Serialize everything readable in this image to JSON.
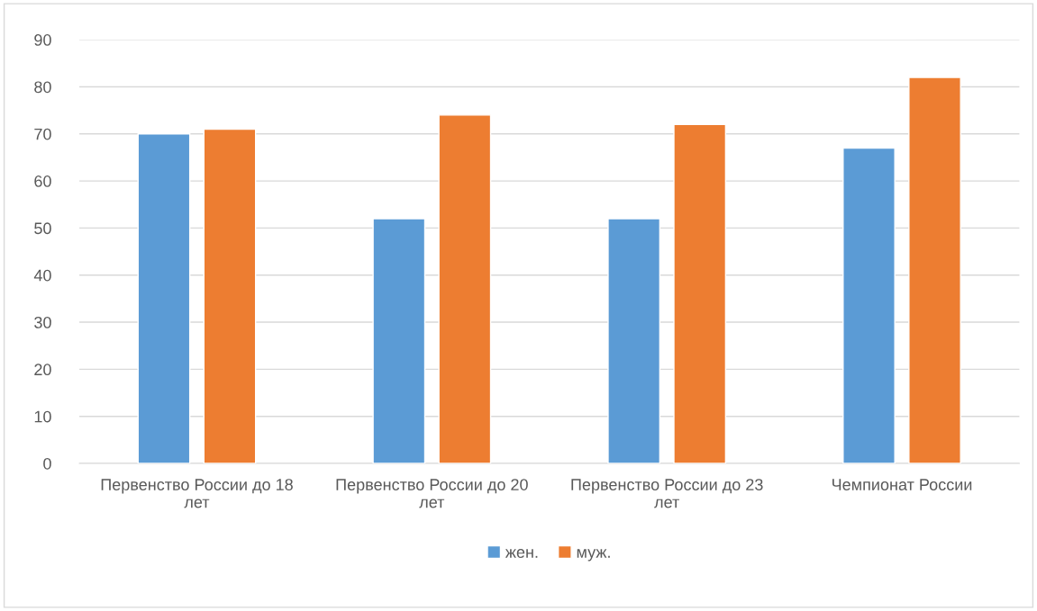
{
  "chart_data": {
    "type": "bar",
    "categories": [
      "Первенство России до 18 лет",
      "Первенство России до 20 лет",
      "Первенство России до 23 лет",
      "Чемпионат России"
    ],
    "series": [
      {
        "name": "жен.",
        "color": "#5b9bd5",
        "values": [
          70,
          52,
          52,
          67
        ]
      },
      {
        "name": "муж.",
        "color": "#ed7d31",
        "values": [
          71,
          74,
          72,
          82
        ]
      }
    ],
    "ylim": [
      0,
      90
    ],
    "yticks": [
      0,
      10,
      20,
      30,
      40,
      50,
      60,
      70,
      80,
      90
    ],
    "grid": "y",
    "legend": "bottom"
  }
}
